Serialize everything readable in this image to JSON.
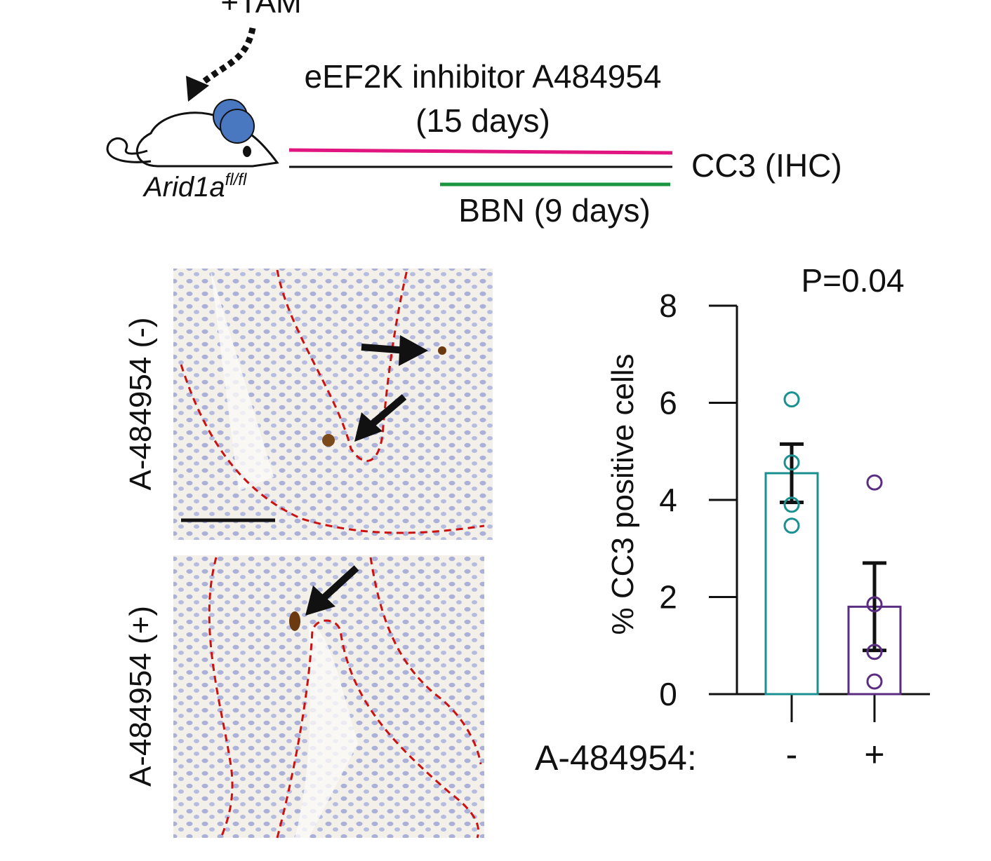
{
  "schematic": {
    "treatment": "+TAM",
    "mouse_label": "Arid1a",
    "mouse_label_superscript": "fl/fl",
    "inhibitor": "eEF2K inhibitor A484954",
    "inhibitor_duration": "(15 days)",
    "readout": "CC3 (IHC)",
    "carcinogen": "BBN (9 days)"
  },
  "images": {
    "labels": [
      "A-484954 (-)",
      "A-484954 (+)"
    ]
  },
  "chart_data": {
    "type": "bar",
    "ylabel": "% CC3 positive cells",
    "xlabel": "A-484954:",
    "annotation": "P=0.04",
    "categories": [
      "-",
      "+"
    ],
    "values": [
      4.55,
      1.8
    ],
    "errors": [
      0.6,
      0.9
    ],
    "points": [
      [
        6.07,
        4.77,
        3.9,
        3.47
      ],
      [
        4.36,
        1.85,
        0.87,
        0.26
      ]
    ],
    "colors": [
      "#1a9090",
      "#5a2d82"
    ],
    "ylim": [
      0,
      8
    ],
    "yticks": [
      0,
      2,
      4,
      6,
      8
    ]
  }
}
